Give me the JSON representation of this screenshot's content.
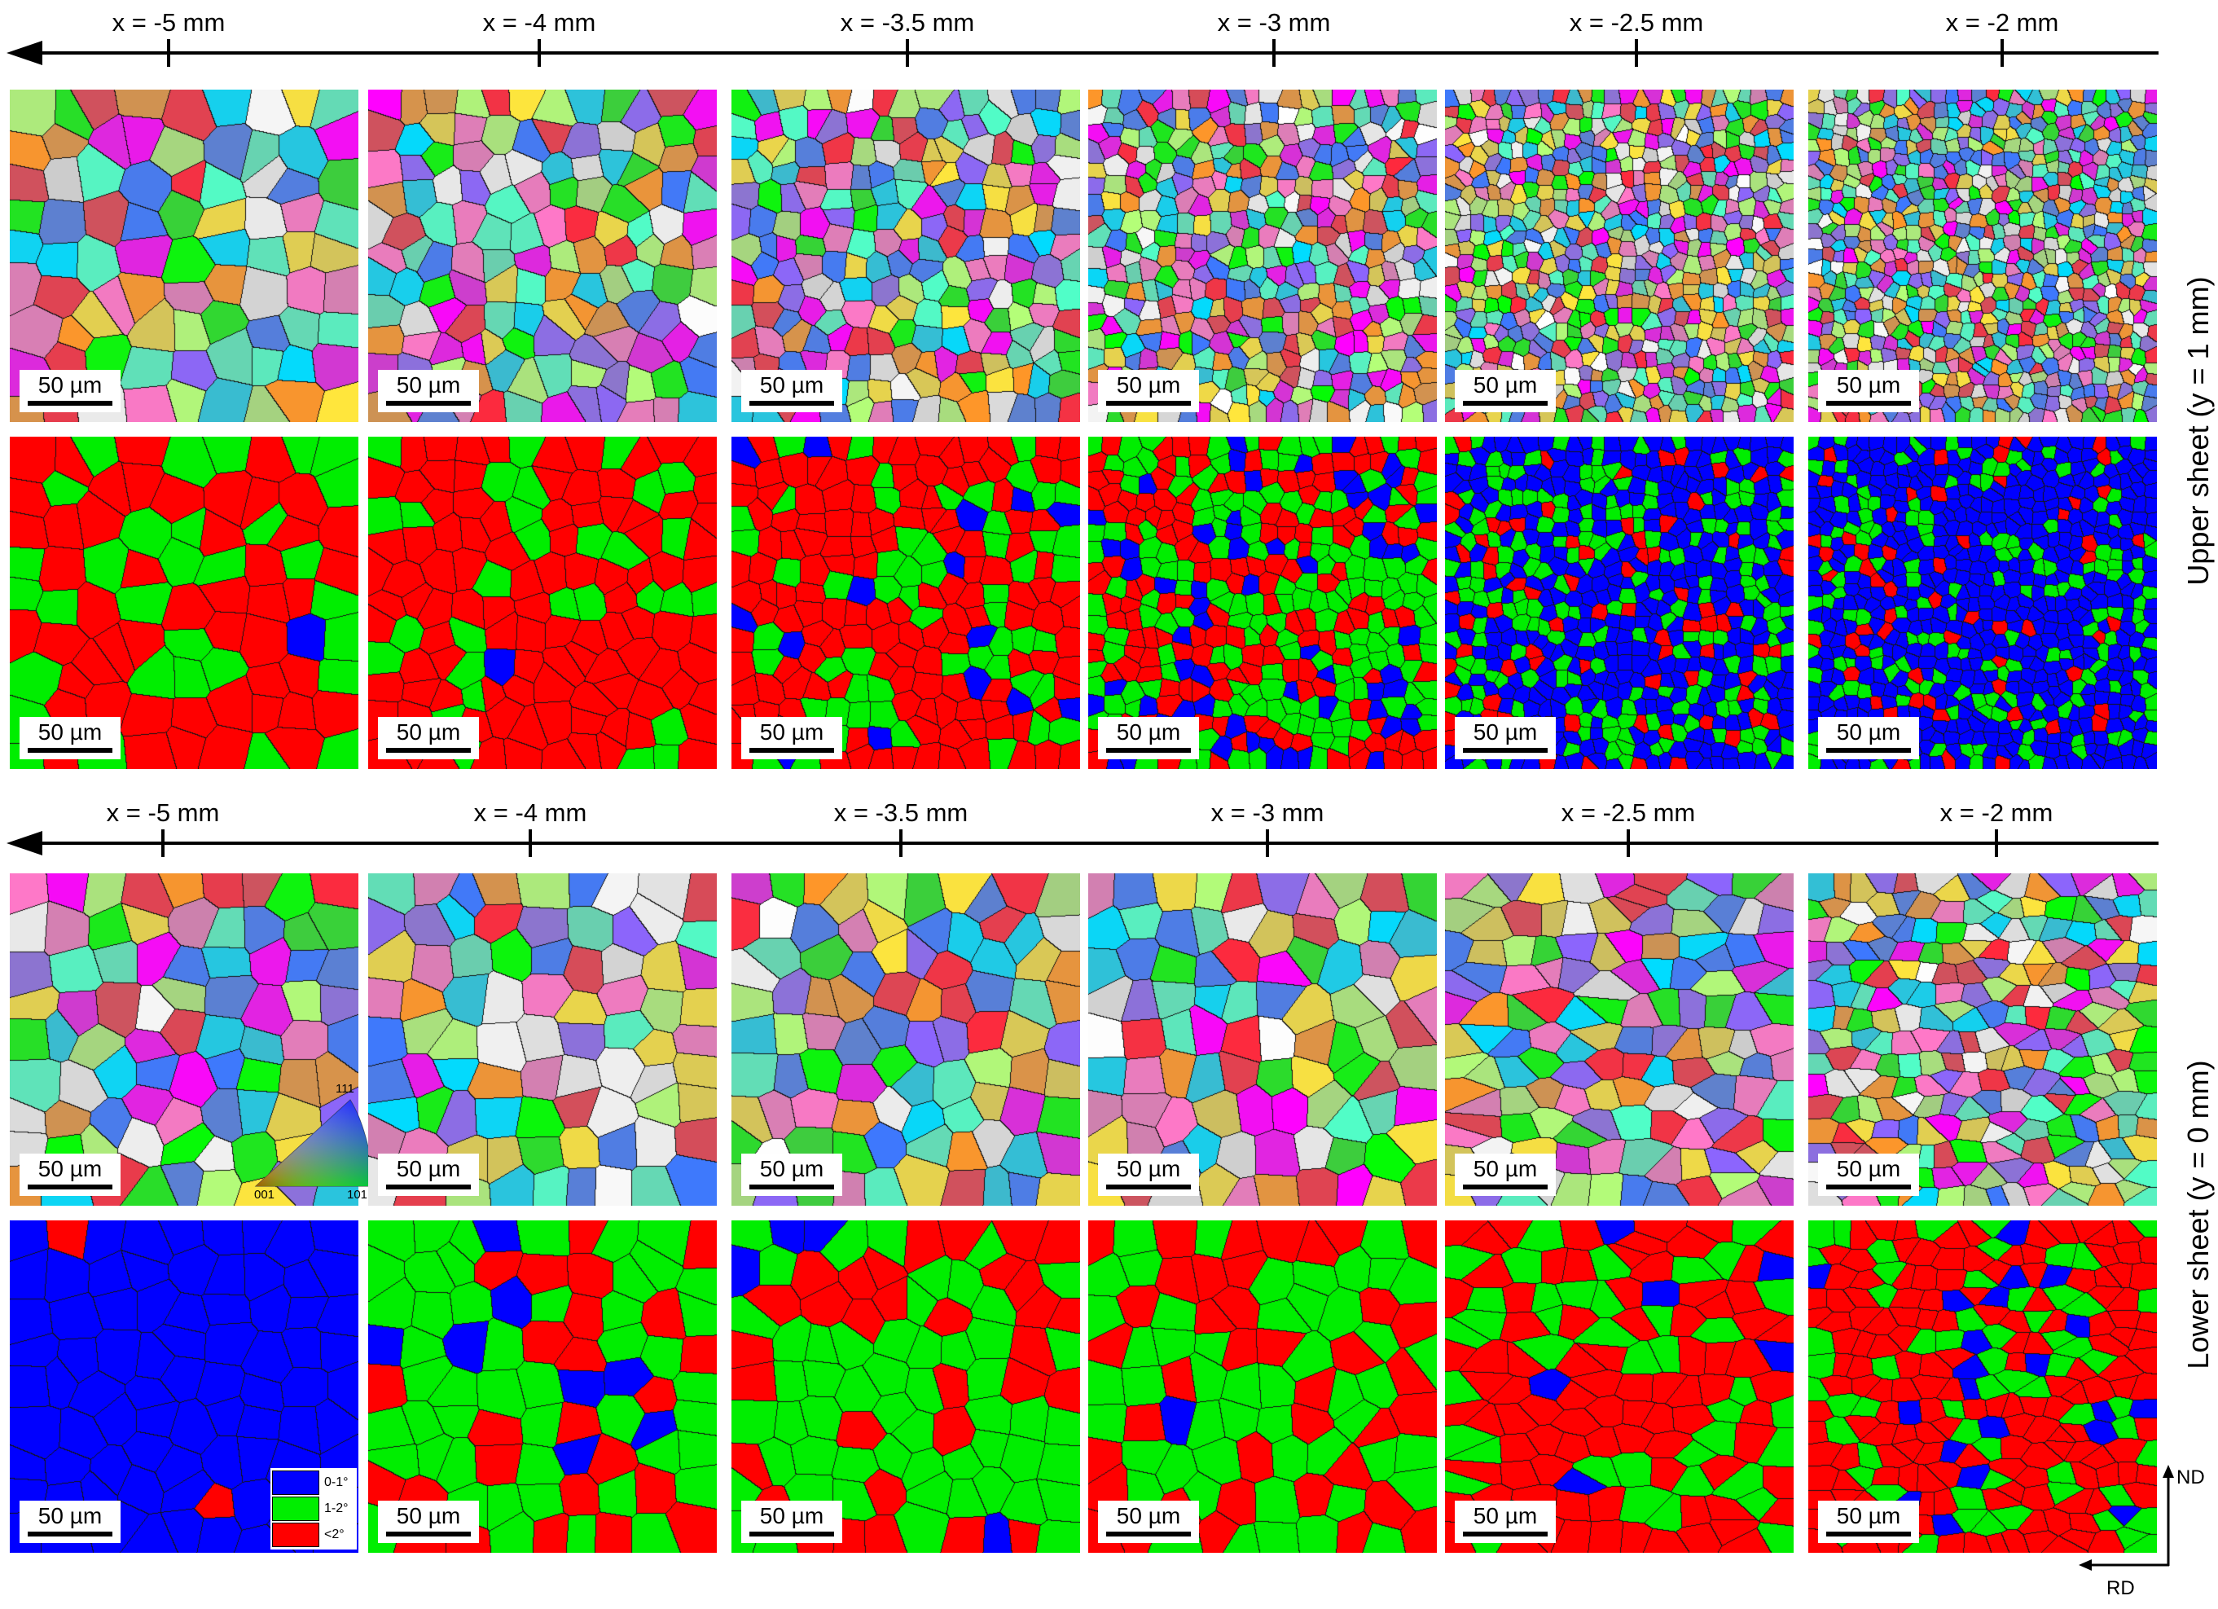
{
  "columns": [
    "x = -5 mm",
    "x = -4 mm",
    "x = -3.5 mm",
    "x = -3 mm",
    "x = -2.5 mm",
    "x = -2 mm"
  ],
  "sections": [
    {
      "name": "upper",
      "label": "Upper sheet (y = 1 mm)"
    },
    {
      "name": "lower",
      "label": "Lower sheet (y = 0 mm)"
    }
  ],
  "scale_bar": "50 µm",
  "ipf_key": {
    "top": "111",
    "left": "001",
    "right": "101"
  },
  "legend": {
    "items": [
      {
        "label": "0-1°",
        "color": "#0000ff"
      },
      {
        "label": "1-2°",
        "color": "#00ee00"
      },
      {
        "label": "<2°",
        "color": "#ff0000"
      }
    ]
  },
  "coordinate_axes": {
    "vertical": "ND",
    "horizontal": "RD"
  },
  "kam_fractions": {
    "upper": [
      {
        "blue": 0.01,
        "green": 0.3
      },
      {
        "blue": 0.02,
        "green": 0.18
      },
      {
        "blue": 0.07,
        "green": 0.28
      },
      {
        "blue": 0.18,
        "green": 0.4
      },
      {
        "blue": 0.62,
        "green": 0.28
      },
      {
        "blue": 0.7,
        "green": 0.22
      }
    ],
    "lower": [
      {
        "blue": 0.96,
        "green": 0.01
      },
      {
        "blue": 0.15,
        "green": 0.6
      },
      {
        "blue": 0.04,
        "green": 0.58
      },
      {
        "blue": 0.04,
        "green": 0.52
      },
      {
        "blue": 0.03,
        "green": 0.25
      },
      {
        "blue": 0.1,
        "green": 0.2
      }
    ]
  },
  "grain_density": {
    "upper": [
      1.0,
      1.25,
      1.6,
      2.1,
      2.7,
      3.0
    ],
    "lower": [
      1.0,
      1.0,
      1.05,
      1.05,
      1.25,
      1.7
    ]
  }
}
